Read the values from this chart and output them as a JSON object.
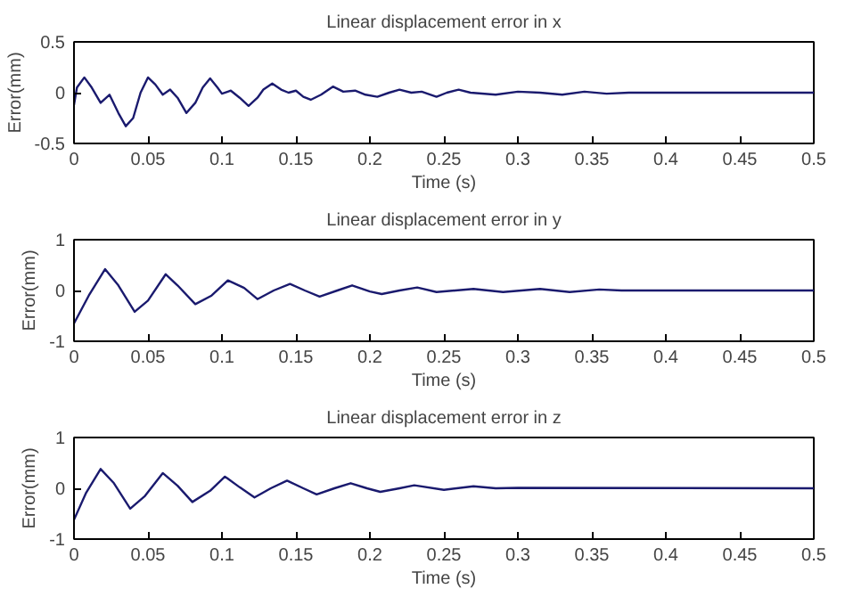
{
  "chart_data": [
    {
      "type": "line",
      "title": "Linear displacement error in x",
      "xlabel": "Time (s)",
      "ylabel": "Error(mm)",
      "xlim": [
        0,
        0.5
      ],
      "ylim": [
        -0.5,
        0.5
      ],
      "xticks": [
        0,
        0.05,
        0.1,
        0.15,
        0.2,
        0.25,
        0.3,
        0.35,
        0.4,
        0.45,
        0.5
      ],
      "yticks": [
        -0.5,
        0,
        0.5
      ],
      "grid": false,
      "x": [
        0,
        0.002,
        0.007,
        0.012,
        0.018,
        0.024,
        0.03,
        0.035,
        0.04,
        0.045,
        0.05,
        0.055,
        0.06,
        0.065,
        0.07,
        0.076,
        0.082,
        0.087,
        0.092,
        0.097,
        0.1,
        0.106,
        0.112,
        0.118,
        0.124,
        0.128,
        0.134,
        0.14,
        0.145,
        0.15,
        0.155,
        0.16,
        0.167,
        0.175,
        0.182,
        0.19,
        0.197,
        0.205,
        0.213,
        0.22,
        0.228,
        0.235,
        0.245,
        0.252,
        0.26,
        0.268,
        0.285,
        0.3,
        0.315,
        0.33,
        0.345,
        0.36,
        0.375,
        0.5
      ],
      "series": [
        {
          "color": "#1a1a6e",
          "values": [
            -0.12,
            0.05,
            0.15,
            0.05,
            -0.1,
            -0.02,
            -0.2,
            -0.33,
            -0.25,
            0,
            0.15,
            0.08,
            -0.02,
            0.03,
            -0.05,
            -0.2,
            -0.1,
            0.05,
            0.14,
            0.05,
            -0.01,
            0.02,
            -0.05,
            -0.13,
            -0.05,
            0.03,
            0.09,
            0.03,
            0,
            0.02,
            -0.04,
            -0.07,
            -0.02,
            0.06,
            0.01,
            0.02,
            -0.02,
            -0.04,
            0,
            0.03,
            0,
            0.01,
            -0.04,
            0,
            0.03,
            0,
            -0.02,
            0.01,
            0,
            -0.02,
            0.01,
            -0.01,
            0,
            0
          ]
        }
      ]
    },
    {
      "type": "line",
      "title": "Linear displacement error in y",
      "xlabel": "Time (s)",
      "ylabel": "Error(mm)",
      "xlim": [
        0,
        0.5
      ],
      "ylim": [
        -1,
        1
      ],
      "xticks": [
        0,
        0.05,
        0.1,
        0.15,
        0.2,
        0.25,
        0.3,
        0.35,
        0.4,
        0.45,
        0.5
      ],
      "yticks": [
        -1,
        0,
        1
      ],
      "grid": false,
      "x": [
        0,
        0.01,
        0.021,
        0.03,
        0.041,
        0.05,
        0.062,
        0.07,
        0.082,
        0.093,
        0.104,
        0.115,
        0.124,
        0.135,
        0.146,
        0.156,
        0.166,
        0.178,
        0.188,
        0.2,
        0.208,
        0.22,
        0.232,
        0.245,
        0.27,
        0.29,
        0.315,
        0.335,
        0.355,
        0.37,
        0.5
      ],
      "series": [
        {
          "color": "#1a1a6e",
          "values": [
            -0.65,
            -0.1,
            0.42,
            0.1,
            -0.42,
            -0.2,
            0.32,
            0.1,
            -0.27,
            -0.1,
            0.2,
            0.05,
            -0.17,
            0,
            0.13,
            0,
            -0.12,
            0,
            0.1,
            -0.02,
            -0.07,
            0,
            0.06,
            -0.03,
            0.03,
            -0.03,
            0.03,
            -0.03,
            0.02,
            0,
            0
          ]
        }
      ]
    },
    {
      "type": "line",
      "title": "Linear displacement error in z",
      "xlabel": "Time (s)",
      "ylabel": "Error(mm)",
      "xlim": [
        0,
        0.5
      ],
      "ylim": [
        -1,
        1
      ],
      "xticks": [
        0,
        0.05,
        0.1,
        0.15,
        0.2,
        0.25,
        0.3,
        0.35,
        0.4,
        0.45,
        0.5
      ],
      "yticks": [
        -1,
        0,
        1
      ],
      "grid": false,
      "x": [
        0,
        0.008,
        0.018,
        0.027,
        0.038,
        0.048,
        0.06,
        0.07,
        0.08,
        0.092,
        0.102,
        0.112,
        0.122,
        0.133,
        0.144,
        0.155,
        0.164,
        0.176,
        0.187,
        0.198,
        0.207,
        0.22,
        0.23,
        0.25,
        0.27,
        0.285,
        0.3,
        0.5
      ],
      "series": [
        {
          "color": "#1a1a6e",
          "values": [
            -0.62,
            -0.1,
            0.38,
            0.1,
            -0.4,
            -0.15,
            0.3,
            0.05,
            -0.27,
            -0.05,
            0.23,
            0.02,
            -0.18,
            0,
            0.15,
            0,
            -0.12,
            0,
            0.1,
            0,
            -0.07,
            0,
            0.06,
            -0.03,
            0.04,
            0,
            0.01,
            0
          ]
        }
      ]
    }
  ]
}
